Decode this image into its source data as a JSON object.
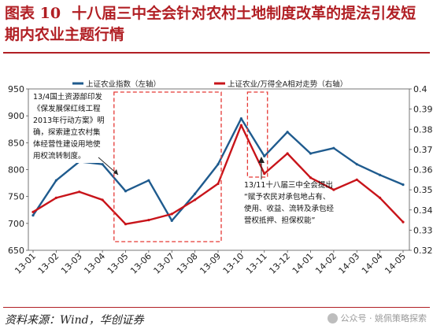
{
  "figure": {
    "label": "图表 10",
    "title": "十八届三中全会针对农村土地制度改革的提法引发短期内农业主题行情"
  },
  "source": "资料来源：Wind，华创证券",
  "watermark": "公众号 · 姚佩策略探索",
  "colors": {
    "accent": "#b11f24",
    "blue": "#1f5b8e",
    "red": "#c8141a",
    "dash": "#e53935"
  },
  "chart_data": {
    "type": "line",
    "categories": [
      "13-01",
      "13-02",
      "13-03",
      "13-04",
      "13-05",
      "13-06",
      "13-07",
      "13-08",
      "13-09",
      "13-10",
      "13-11",
      "13-12",
      "14-01",
      "14-02",
      "14-03",
      "14-04",
      "14-05"
    ],
    "ylim_left": [
      650,
      950
    ],
    "ylim_right": [
      0.32,
      0.4
    ],
    "yticks_left": [
      "650",
      "700",
      "750",
      "800",
      "850",
      "900",
      "950"
    ],
    "yticks_right": [
      "0.32",
      "0.33",
      "0.34",
      "0.35",
      "0.36",
      "0.37",
      "0.38",
      "0.39",
      "0.4"
    ],
    "series": [
      {
        "name": "上证农业指数（左轴）",
        "axis": "left",
        "color": "#1f5b8e",
        "values": [
          715,
          780,
          815,
          810,
          760,
          780,
          705,
          755,
          810,
          895,
          825,
          870,
          830,
          840,
          810,
          790,
          772
        ]
      },
      {
        "name": "上证农业/万得全A相对走势（右轴）",
        "axis": "right",
        "color": "#c8141a",
        "values": [
          0.339,
          0.346,
          0.349,
          0.345,
          0.333,
          0.335,
          0.338,
          0.345,
          0.353,
          0.382,
          0.358,
          0.368,
          0.356,
          0.35,
          0.355,
          0.346,
          0.334
        ]
      }
    ],
    "annotations": [
      {
        "id": "left",
        "lines": [
          "13/4国土资源部印发",
          "《保发展保红线工程",
          "2013年行动方案》明",
          "确，探索建立农村集",
          "体经营性建设用地使",
          "用权流转制度。"
        ]
      },
      {
        "id": "right",
        "lines": [
          "13/11十八届三中全会提出",
          "“赋予农民对承包地占有、",
          "使用、收益、流转及承包经",
          "营权抵押、担保权能”"
        ]
      }
    ]
  }
}
